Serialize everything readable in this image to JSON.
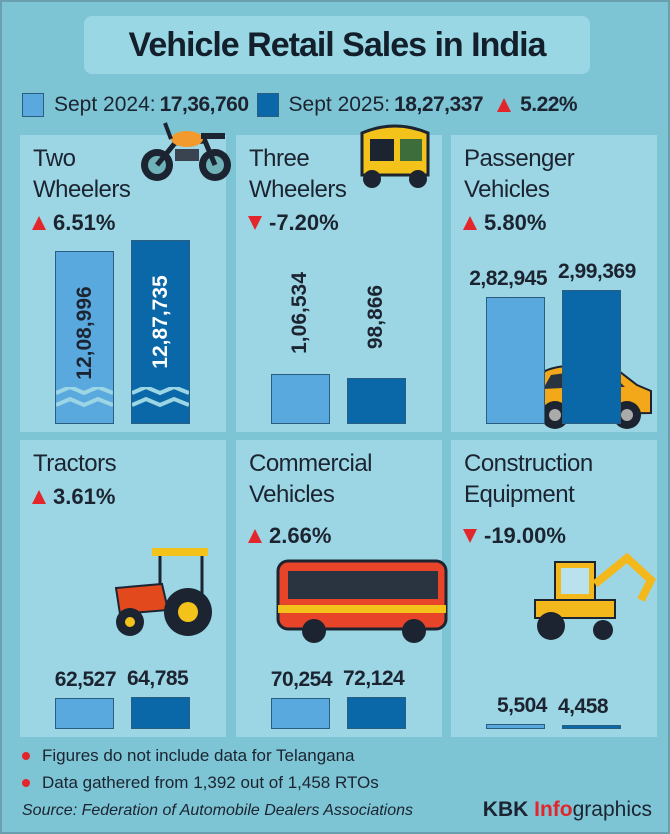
{
  "title": "Vehicle Retail Sales in India",
  "legend": {
    "label_2024": "Sept 2024:",
    "total_2024": "17,36,760",
    "label_2025": "Sept 2025:",
    "total_2025": "18,27,337",
    "change": "5.22%"
  },
  "colors": {
    "sept_2024": "#5aa9de",
    "sept_2025": "#0b68a8",
    "up": "#e3262b",
    "background": "#7dc4d4"
  },
  "chart_data": {
    "type": "bar",
    "title": "Vehicle Retail Sales in India",
    "series": [
      {
        "name": "Sept 2024"
      },
      {
        "name": "Sept 2025"
      }
    ],
    "panels": [
      {
        "category_line1": "Two",
        "category_line2": "Wheelers",
        "change": "6.51%",
        "direction": "up",
        "v2024": 1208996,
        "v2025": 1287735,
        "l2024": "12,08,996",
        "l2025": "12,87,735"
      },
      {
        "category_line1": "Three",
        "category_line2": "Wheelers",
        "change": "-7.20%",
        "direction": "down",
        "v2024": 106534,
        "v2025": 98866,
        "l2024": "1,06,534",
        "l2025": "98,866"
      },
      {
        "category_line1": "Passenger",
        "category_line2": "Vehicles",
        "change": "5.80%",
        "direction": "up",
        "v2024": 282945,
        "v2025": 299369,
        "l2024": "2,82,945",
        "l2025": "2,99,369"
      },
      {
        "category_line1": "Tractors",
        "category_line2": "",
        "change": "3.61%",
        "direction": "up",
        "v2024": 62527,
        "v2025": 64785,
        "l2024": "62,527",
        "l2025": "64,785"
      },
      {
        "category_line1": "Commercial",
        "category_line2": "Vehicles",
        "change": "2.66%",
        "direction": "up",
        "v2024": 70254,
        "v2025": 72124,
        "l2024": "70,254",
        "l2025": "72,124"
      },
      {
        "category_line1": "Construction",
        "category_line2": "Equipment",
        "change": "-19.00%",
        "direction": "down",
        "v2024": 5504,
        "v2025": 4458,
        "l2024": "5,504",
        "l2025": "4,458"
      }
    ]
  },
  "notes": [
    "Figures do not include data for Telangana",
    "Data gathered from 1,392 out of 1,458 RTOs"
  ],
  "source": "Source: Federation of Automobile Dealers Associations",
  "brand": {
    "a": "KBK ",
    "b": "Info",
    "c": "graphics"
  }
}
